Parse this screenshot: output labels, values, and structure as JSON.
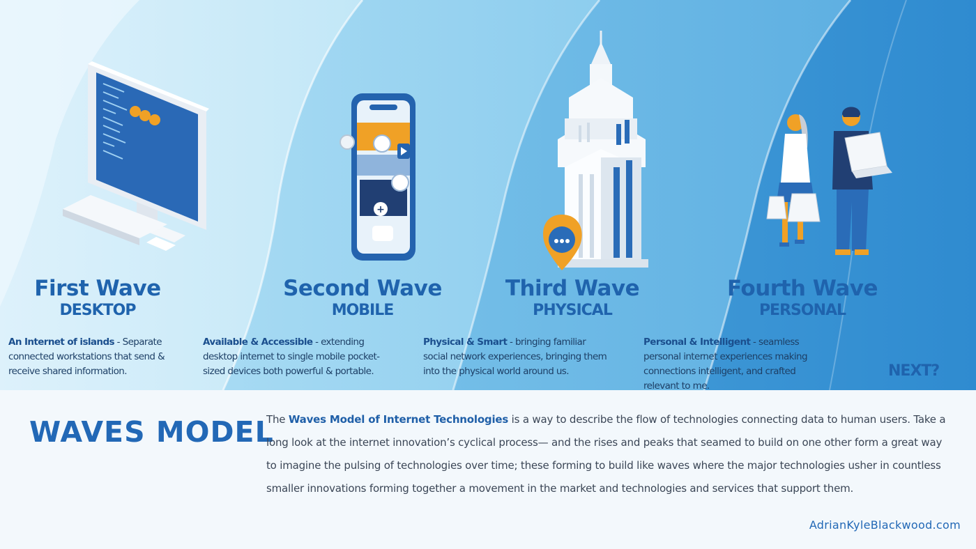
{
  "waves": [
    {
      "title": "First Wave",
      "subtitle": "DESKTOP",
      "lead": "An Internet of islands",
      "sep": " - ",
      "text": "Separate connected workstations that send & receive shared information."
    },
    {
      "title": "Second Wave",
      "subtitle": "MOBILE",
      "lead": "Available & Accessible",
      "sep": " - ",
      "text": "extending desktop internet to single mobile pocket-sized devices  both powerful & portable."
    },
    {
      "title": "Third Wave",
      "subtitle": "PHYSICAL",
      "lead": "Physical & Smart",
      "sep": " - ",
      "text": "bringing familiar social network experiences, bringing them into the physical world around us."
    },
    {
      "title": "Fourth Wave",
      "subtitle": "PERSONAL",
      "lead": "Personal & Intelligent",
      "sep": " - ",
      "text": "seamless personal internet experiences making connections intelligent, and crafted relevant to me."
    }
  ],
  "next_label": "NEXT?",
  "model": {
    "title": "WAVES MODEL",
    "intro": "The ",
    "highlight": "Waves Model of Internet Technologies",
    "body": " is a way to describe the flow of technologies connecting data to human users. Take a long look at the internet innovation’s cyclical process— and the rises and peaks that seamed to build on one other form a great way to imagine the pulsing of technologies over time; these forming to build like waves where the major technologies usher in countless smaller innovations forming together a movement in the market and technologies and services that support them."
  },
  "site": "AdrianKyleBlackwood.com",
  "colors": {
    "accent": "#1f63ad",
    "orange": "#f0a126",
    "wave_light": "#dff2fb",
    "wave_mid": "#b5e0f4",
    "wave_dark": "#4ea6da",
    "background": "#f3f8fc"
  },
  "icons": [
    "desktop-computer-icon",
    "smartphone-icon",
    "skyscraper-icon",
    "location-pin-icon",
    "people-icon"
  ]
}
